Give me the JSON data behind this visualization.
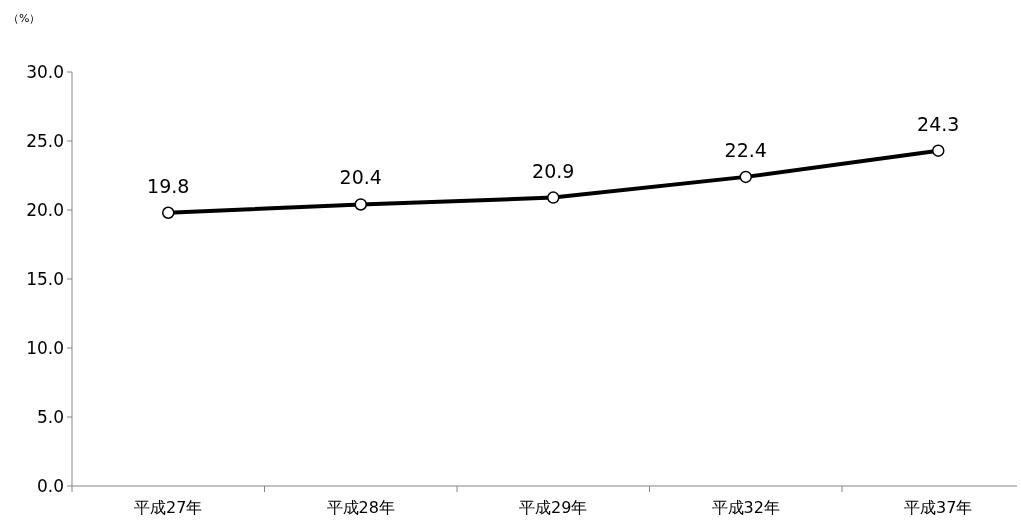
{
  "chart_data": {
    "type": "line",
    "ylabel": "（%）",
    "categories": [
      "平成27年",
      "平成28年",
      "平成29年",
      "平成32年",
      "平成37年"
    ],
    "series": [
      {
        "color": "#000000",
        "values": [
          19.8,
          20.4,
          20.9,
          22.4,
          24.3
        ]
      }
    ],
    "ylim": [
      0,
      30
    ],
    "yticks": [
      {
        "value": 0,
        "label": "0.0"
      },
      {
        "value": 5,
        "label": "5.0"
      },
      {
        "value": 10,
        "label": "10.0"
      },
      {
        "value": 15,
        "label": "15.0"
      },
      {
        "value": 20,
        "label": "20.0"
      },
      {
        "value": 25,
        "label": "25.0"
      },
      {
        "value": 30,
        "label": "30.0"
      }
    ],
    "data_labels": true,
    "marker": "circle",
    "line_style": "solid",
    "grid": false
  }
}
